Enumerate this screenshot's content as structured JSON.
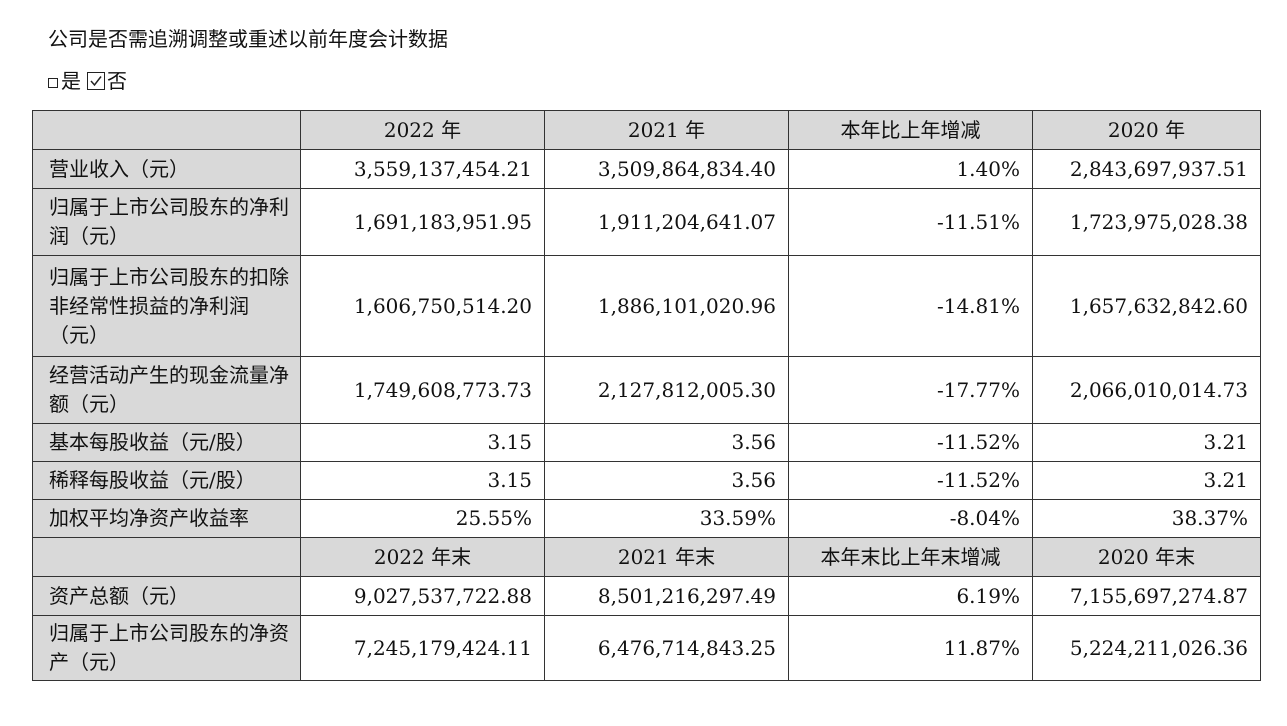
{
  "heading": "公司是否需追溯调整或重述以前年度会计数据",
  "choice": {
    "yes_label": "是",
    "no_label": "否",
    "selected": "否"
  },
  "table": {
    "header1": [
      "",
      "2022 年",
      "2021 年",
      "本年比上年增减",
      "2020 年"
    ],
    "rows1": [
      {
        "label": "营业收入（元）",
        "values": [
          "3,559,137,454.21",
          "3,509,864,834.40",
          "1.40%",
          "2,843,697,937.51"
        ]
      },
      {
        "label": "归属于上市公司股东的净利润（元）",
        "values": [
          "1,691,183,951.95",
          "1,911,204,641.07",
          "-11.51%",
          "1,723,975,028.38"
        ]
      },
      {
        "label": "归属于上市公司股东的扣除非经常性损益的净利润（元）",
        "values": [
          "1,606,750,514.20",
          "1,886,101,020.96",
          "-14.81%",
          "1,657,632,842.60"
        ]
      },
      {
        "label": "经营活动产生的现金流量净额（元）",
        "values": [
          "1,749,608,773.73",
          "2,127,812,005.30",
          "-17.77%",
          "2,066,010,014.73"
        ]
      },
      {
        "label": "基本每股收益（元/股）",
        "values": [
          "3.15",
          "3.56",
          "-11.52%",
          "3.21"
        ]
      },
      {
        "label": "稀释每股收益（元/股）",
        "values": [
          "3.15",
          "3.56",
          "-11.52%",
          "3.21"
        ]
      },
      {
        "label": "加权平均净资产收益率",
        "values": [
          "25.55%",
          "33.59%",
          "-8.04%",
          "38.37%"
        ]
      }
    ],
    "header2": [
      "",
      "2022 年末",
      "2021 年末",
      "本年末比上年末增减",
      "2020 年末"
    ],
    "rows2": [
      {
        "label": "资产总额（元）",
        "values": [
          "9,027,537,722.88",
          "8,501,216,297.49",
          "6.19%",
          "7,155,697,274.87"
        ]
      },
      {
        "label": "归属于上市公司股东的净资产（元）",
        "values": [
          "7,245,179,424.11",
          "6,476,714,843.25",
          "11.87%",
          "5,224,211,026.36"
        ]
      }
    ]
  }
}
